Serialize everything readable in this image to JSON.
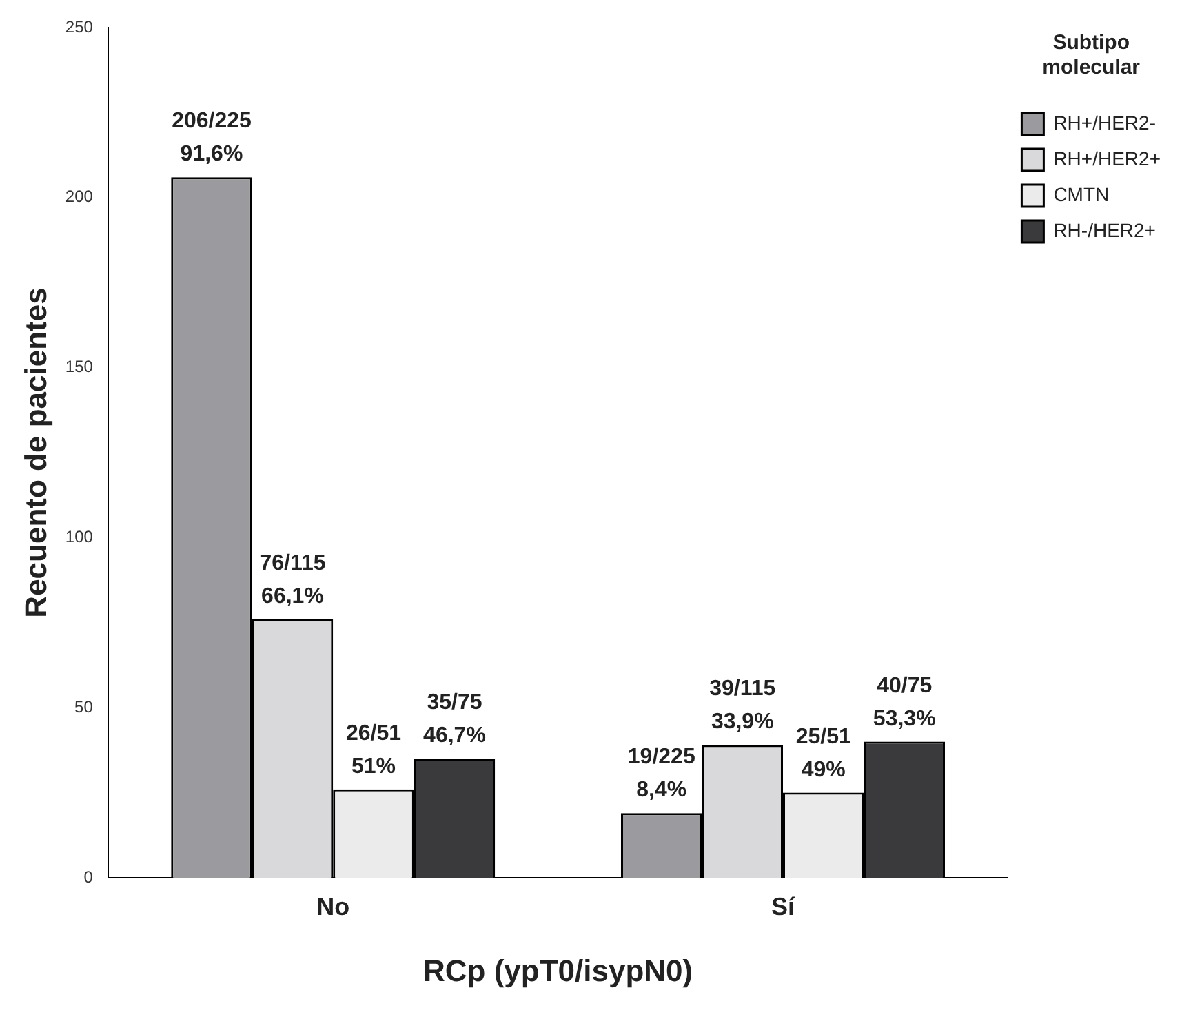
{
  "chart_data": {
    "type": "bar",
    "xlabel": "RCp (ypT0/isypN0)",
    "ylabel": "Recuento de pacientes",
    "legend_title": "Subtipo molecular",
    "categories": [
      "No",
      "Sí"
    ],
    "series": [
      {
        "name": "RH+/HER2-",
        "color": "#9b9b9f",
        "values": [
          206,
          19
        ],
        "value_labels": [
          "206/225\n91,6%",
          "19/225\n8,4%"
        ]
      },
      {
        "name": "RH+/HER2+",
        "color": "#d9d9db",
        "values": [
          76,
          39
        ],
        "value_labels": [
          "76/115\n66,1%",
          "39/115\n33,9%"
        ]
      },
      {
        "name": "CMTN",
        "color": "#ebebeb",
        "values": [
          26,
          25
        ],
        "value_labels": [
          "26/51\n51%",
          "25/51\n49%"
        ]
      },
      {
        "name": "RH-/HER2+",
        "color": "#3a3a3c",
        "values": [
          35,
          40
        ],
        "value_labels": [
          "35/75\n46,7%",
          "40/75\n53,3%"
        ]
      }
    ],
    "ylim": [
      0,
      250
    ],
    "yticks": [
      0,
      50,
      100,
      150,
      200,
      250
    ],
    "grid": false,
    "legend": "top right"
  }
}
